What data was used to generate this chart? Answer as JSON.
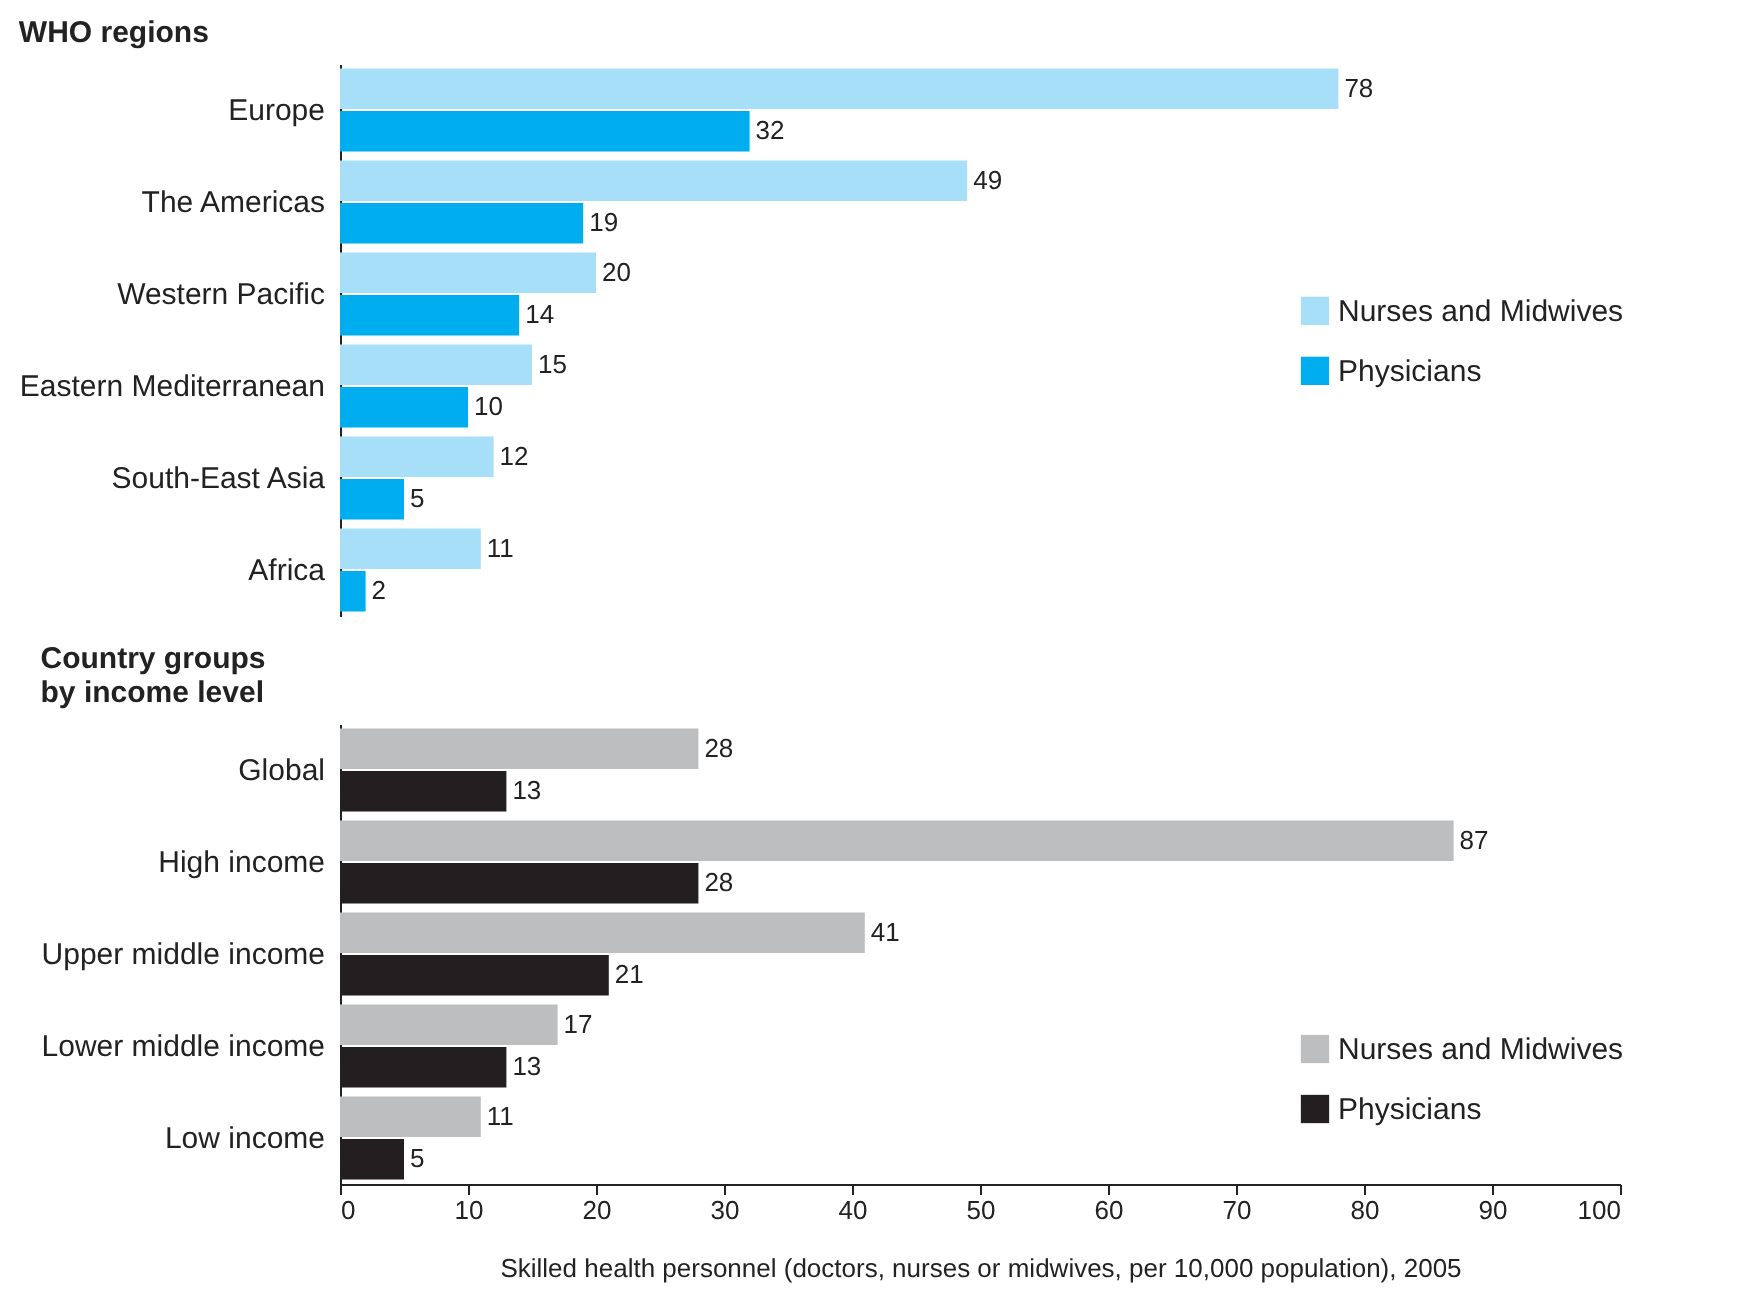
{
  "chart_data": [
    {
      "type": "bar",
      "orientation": "horizontal",
      "title": "WHO regions",
      "categories": [
        "Europe",
        "The Americas",
        "Western Pacific",
        "Eastern Mediterranean",
        "South-East Asia",
        "Africa"
      ],
      "series": [
        {
          "name": "Nurses and Midwives",
          "color": "#a8dff8",
          "values": [
            78,
            49,
            20,
            15,
            12,
            11
          ]
        },
        {
          "name": "Physicians",
          "color": "#00aeef",
          "values": [
            32,
            19,
            14,
            10,
            5,
            2
          ]
        }
      ],
      "xlim": [
        0,
        100
      ],
      "xticks": [
        0,
        10,
        20,
        30,
        40,
        50,
        60,
        70,
        80,
        90,
        100
      ],
      "tick_labels": "y",
      "data_labels": true,
      "legend": "right"
    },
    {
      "type": "bar",
      "orientation": "horizontal",
      "title": "Country groups by income level",
      "categories": [
        "Global",
        "High income",
        "Upper middle income",
        "Lower middle income",
        "Low income"
      ],
      "series": [
        {
          "name": "Nurses and Midwives",
          "color": "#bcbec0",
          "values": [
            28,
            87,
            41,
            17,
            11
          ]
        },
        {
          "name": "Physicians",
          "color": "#231f20",
          "values": [
            13,
            28,
            21,
            13,
            5
          ]
        }
      ],
      "xlim": [
        0,
        100
      ],
      "xticks": [
        0,
        10,
        20,
        30,
        40,
        50,
        60,
        70,
        80,
        90,
        100
      ],
      "xlabel": "Skilled health personnel (doctors, nurses or midwives, per 10,000 population), 2005",
      "data_labels": true,
      "legend": "bottom right"
    }
  ]
}
